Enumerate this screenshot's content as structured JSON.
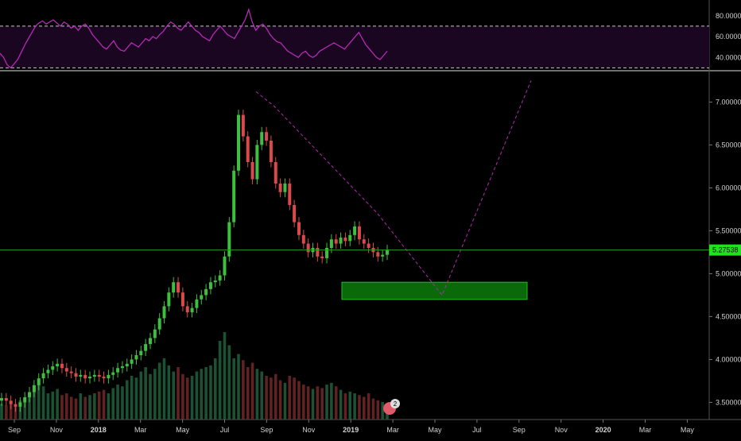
{
  "chart_data": [
    {
      "type": "line",
      "panel": "oscillator",
      "ylim": [
        28,
        92
      ],
      "y_ticks": [
        "80.0000",
        "60.0000",
        "40.0000"
      ],
      "y_tick_values": [
        80,
        60,
        40
      ],
      "bands": [
        70,
        30
      ],
      "colors": {
        "line": "#c02cc0",
        "band_fill": "#1a0620",
        "band_line": "#c8c8c8"
      },
      "values": [
        44,
        40,
        33,
        30,
        34,
        38,
        45,
        52,
        58,
        64,
        70,
        73,
        75,
        72,
        74,
        76,
        73,
        70,
        74,
        72,
        68,
        70,
        66,
        70,
        72,
        68,
        62,
        58,
        54,
        50,
        48,
        52,
        56,
        50,
        47,
        46,
        50,
        54,
        52,
        50,
        54,
        58,
        56,
        60,
        58,
        62,
        65,
        70,
        74,
        72,
        68,
        66,
        70,
        74,
        70,
        66,
        64,
        60,
        58,
        56,
        62,
        66,
        70,
        66,
        62,
        60,
        58,
        64,
        70,
        76,
        86,
        74,
        66,
        70,
        72,
        68,
        62,
        58,
        55,
        54,
        50,
        46,
        44,
        42,
        40,
        44,
        46,
        42,
        40,
        42,
        46,
        48,
        50,
        52,
        54,
        52,
        50,
        48,
        52,
        56,
        60,
        64,
        58,
        52,
        48,
        44,
        40,
        38,
        42,
        46
      ]
    },
    {
      "type": "candlestick",
      "panel": "price",
      "ylim": [
        3.3,
        7.3
      ],
      "y_ticks": [
        "7.00000",
        "6.50000",
        "6.00000",
        "5.50000",
        "5.00000",
        "4.50000",
        "4.00000",
        "3.50000"
      ],
      "y_tick_values": [
        7.0,
        6.5,
        6.0,
        5.5,
        5.0,
        4.5,
        4.0,
        3.5
      ],
      "x_ticks": [
        "Sep",
        "Nov",
        "2018",
        "Mar",
        "May",
        "Jul",
        "Sep",
        "Nov",
        "2019",
        "Mar",
        "May",
        "Jul",
        "Sep",
        "Nov",
        "2020",
        "Mar",
        "May"
      ],
      "x_tick_bold": [
        false,
        false,
        true,
        false,
        false,
        false,
        false,
        false,
        true,
        false,
        false,
        false,
        false,
        false,
        true,
        false,
        false
      ],
      "current_price_label": "5.27538",
      "current_price": 5.27538,
      "colors": {
        "up": "#3fbf3f",
        "down": "#d94a4a",
        "price_line": "#1f9e1f",
        "price_label_bg": "#22e022",
        "projection": "#b02cb0",
        "zone_fill": "#0a6a0a",
        "zone_border": "#1ec01e",
        "axis_text": "#d0d0d0"
      },
      "closes": [
        3.55,
        3.52,
        3.48,
        3.45,
        3.5,
        3.56,
        3.62,
        3.7,
        3.78,
        3.84,
        3.88,
        3.92,
        3.95,
        3.9,
        3.86,
        3.84,
        3.8,
        3.82,
        3.78,
        3.8,
        3.82,
        3.8,
        3.78,
        3.82,
        3.85,
        3.9,
        3.92,
        3.95,
        4.0,
        4.05,
        4.1,
        4.18,
        4.25,
        4.35,
        4.48,
        4.62,
        4.78,
        4.9,
        4.78,
        4.62,
        4.55,
        4.6,
        4.7,
        4.75,
        4.82,
        4.9,
        4.92,
        4.98,
        5.2,
        5.6,
        6.2,
        6.85,
        6.6,
        6.3,
        6.1,
        6.5,
        6.65,
        6.55,
        6.3,
        6.05,
        5.95,
        6.05,
        5.8,
        5.6,
        5.45,
        5.35,
        5.25,
        5.3,
        5.2,
        5.18,
        5.3,
        5.4,
        5.35,
        5.42,
        5.38,
        5.45,
        5.55,
        5.4,
        5.35,
        5.3,
        5.25,
        5.2,
        5.22,
        5.27538
      ],
      "volume": [
        0.18,
        0.16,
        0.2,
        0.15,
        0.22,
        0.25,
        0.28,
        0.35,
        0.42,
        0.38,
        0.3,
        0.32,
        0.35,
        0.28,
        0.3,
        0.26,
        0.24,
        0.3,
        0.26,
        0.28,
        0.3,
        0.32,
        0.34,
        0.3,
        0.36,
        0.4,
        0.38,
        0.45,
        0.5,
        0.48,
        0.55,
        0.6,
        0.52,
        0.58,
        0.65,
        0.7,
        0.62,
        0.55,
        0.6,
        0.52,
        0.48,
        0.5,
        0.55,
        0.58,
        0.6,
        0.62,
        0.7,
        0.9,
        1.0,
        0.85,
        0.7,
        0.75,
        0.68,
        0.6,
        0.65,
        0.58,
        0.55,
        0.5,
        0.48,
        0.52,
        0.45,
        0.42,
        0.5,
        0.48,
        0.44,
        0.4,
        0.38,
        0.35,
        0.38,
        0.36,
        0.4,
        0.42,
        0.38,
        0.34,
        0.3,
        0.32,
        0.3,
        0.28,
        0.26,
        0.3,
        0.24,
        0.22,
        0.2,
        0.18
      ],
      "projection_path": [
        [
          7.12,
          7.12
        ],
        [
          6.95,
          6.95
        ],
        [
          5.7,
          5.7
        ],
        [
          4.75,
          4.75
        ],
        [
          7.25,
          7.25
        ]
      ],
      "zone": [
        4.7,
        4.9
      ],
      "badge_label": "2"
    }
  ]
}
